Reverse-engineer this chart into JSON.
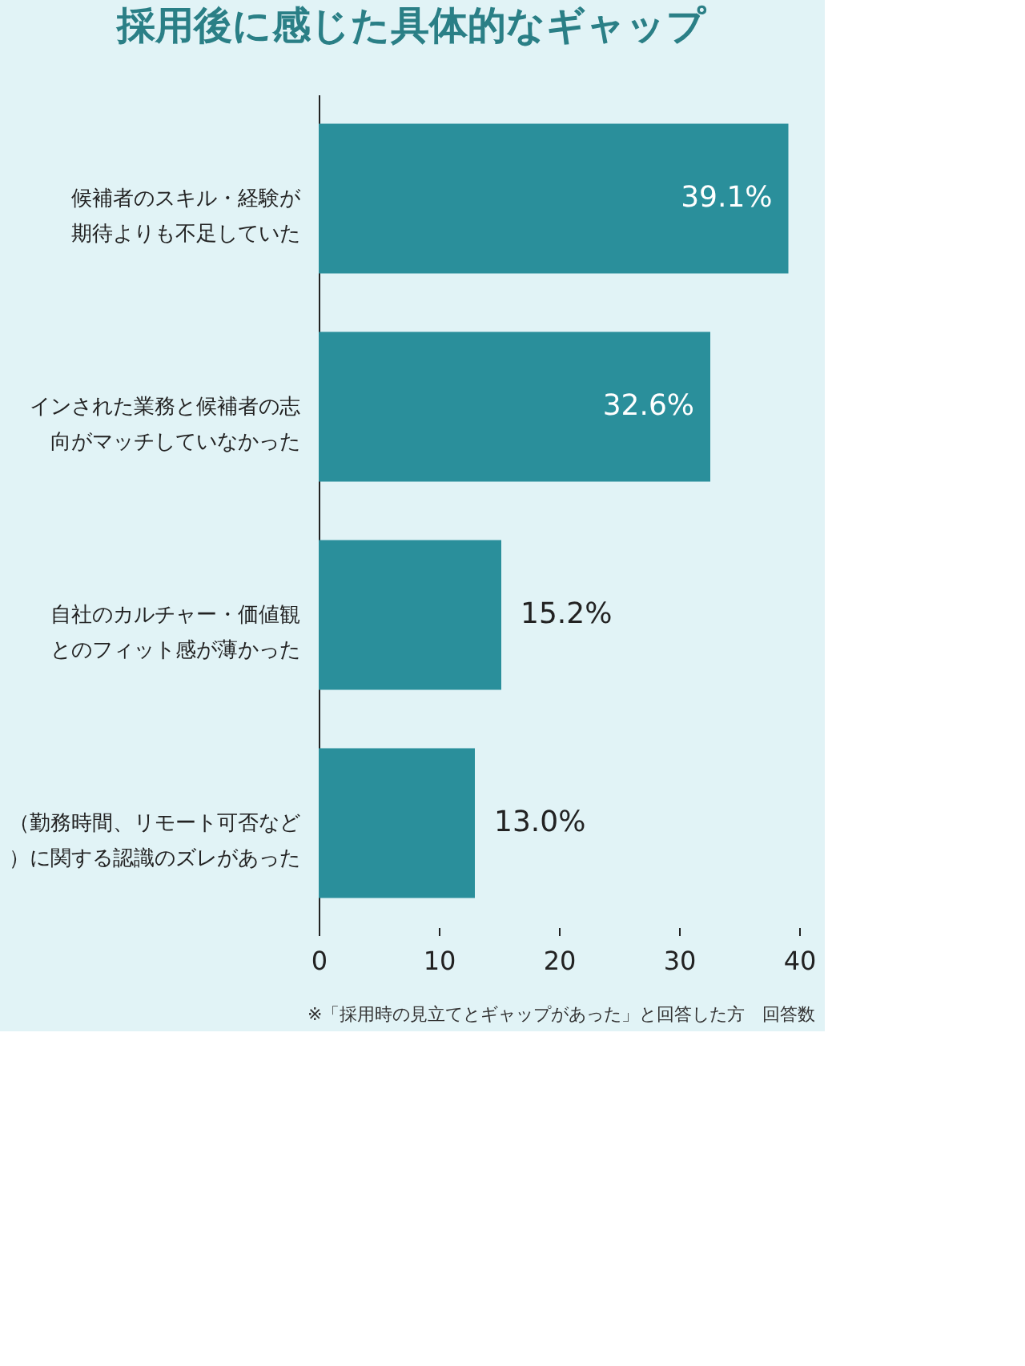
{
  "chart_data": {
    "type": "bar",
    "orientation": "horizontal",
    "title": "採用後に感じた具体的なギャップ",
    "categories": [
      "候補者のスキル・経験が期待よりも不足していた",
      "インされた業務と候補者の志向がマッチしていなかった",
      "自社のカルチャー・価値観とのフィット感が薄かった",
      "（勤務時間、リモート可否など）に関する認識のズレがあった"
    ],
    "values": [
      39.1,
      32.6,
      15.2,
      13.0
    ],
    "value_labels": [
      "39.1%",
      "32.6%",
      "15.2%",
      "13.0%"
    ],
    "color": "#2a8f9b",
    "xlim": [
      0,
      40
    ],
    "xticks": [
      0,
      10,
      20,
      30,
      40
    ],
    "grid": false,
    "annotations": [
      "※「採用時の見立てとギャップがあった」と回答した方　回答数"
    ]
  }
}
